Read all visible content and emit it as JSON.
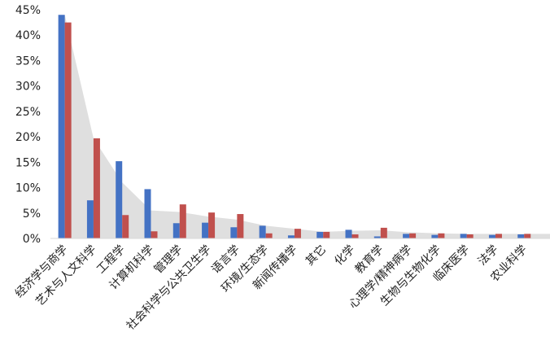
{
  "chart_data": {
    "type": "bar",
    "title": "",
    "xlabel": "",
    "ylabel": "",
    "ylim": [
      0,
      45
    ],
    "yticks": [
      "0%",
      "5%",
      "10%",
      "15%",
      "20%",
      "25%",
      "30%",
      "35%",
      "40%",
      "45%"
    ],
    "categories": [
      "经济学与商学",
      "艺术与人文科学",
      "工程学",
      "计算机科学",
      "管理学",
      "社会科学与公共卫生学",
      "语言学",
      "环境/生态学",
      "新闻传播学",
      "其它",
      "化学",
      "教育学",
      "心理学/精神病学",
      "生物与生物化学",
      "临床医学",
      "法学",
      "农业科学"
    ],
    "series": [
      {
        "color": "#4472C4",
        "values": [
          44.0,
          7.5,
          15.2,
          9.7,
          3.0,
          3.1,
          2.2,
          2.5,
          0.6,
          1.3,
          1.7,
          0.4,
          0.9,
          0.7,
          0.9,
          0.7,
          0.8
        ]
      },
      {
        "color": "#C0504D",
        "values": [
          42.5,
          19.7,
          4.6,
          1.4,
          6.7,
          5.1,
          4.8,
          1.0,
          1.9,
          1.3,
          0.8,
          2.1,
          1.0,
          1.0,
          0.8,
          0.9,
          0.9
        ]
      }
    ],
    "area": {
      "color": "#d4d4d4",
      "values": [
        44.0,
        19.7,
        11.0,
        5.5,
        5.2,
        4.3,
        3.7,
        2.5,
        1.9,
        1.3,
        1.5,
        1.6,
        1.2,
        1.0,
        0.9,
        0.9,
        0.9,
        0.9
      ]
    },
    "grid": false,
    "legend": "none"
  }
}
